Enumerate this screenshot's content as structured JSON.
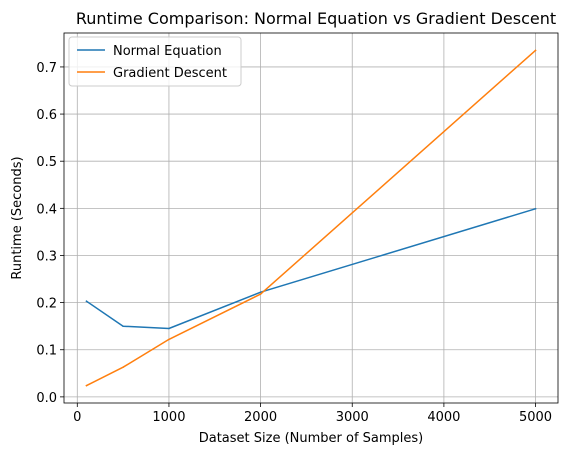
{
  "chart_data": {
    "type": "line",
    "title": "Runtime Comparison: Normal Equation vs Gradient Descent",
    "xlabel": "Dataset Size (Number of Samples)",
    "ylabel": "Runtime (Seconds)",
    "xlim": [
      -145,
      5245
    ],
    "ylim": [
      -0.013,
      0.772
    ],
    "xticks": [
      0,
      1000,
      2000,
      3000,
      4000,
      5000
    ],
    "yticks": [
      0.0,
      0.1,
      0.2,
      0.3,
      0.4,
      0.5,
      0.6,
      0.7
    ],
    "ytick_labels": [
      "0.0",
      "0.1",
      "0.2",
      "0.3",
      "0.4",
      "0.5",
      "0.6",
      "0.7"
    ],
    "grid": true,
    "legend_position": "top-left",
    "series": [
      {
        "name": "Normal Equation",
        "color": "#1f77b4",
        "x": [
          100,
          500,
          1000,
          2000,
          5000
        ],
        "y": [
          0.203,
          0.15,
          0.145,
          0.222,
          0.399
        ]
      },
      {
        "name": "Gradient Descent",
        "color": "#ff7f0e",
        "x": [
          100,
          500,
          1000,
          2000,
          5000
        ],
        "y": [
          0.024,
          0.063,
          0.122,
          0.218,
          0.735
        ]
      }
    ]
  }
}
